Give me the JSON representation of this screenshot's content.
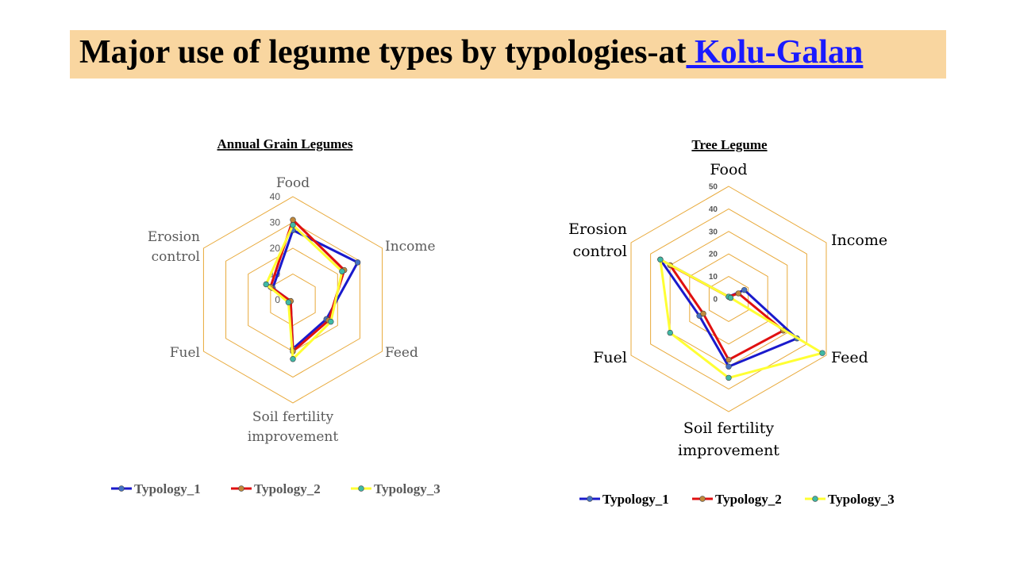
{
  "header": {
    "title_prefix": "Major use of legume types by typologies-at",
    "title_link": " Kolu-Galan",
    "background": "#f9d6a0",
    "link_color": "#1a1aff"
  },
  "chart_data": [
    {
      "type": "radar",
      "title": "Annual Grain Legumes",
      "categories": [
        "Food",
        "Income",
        "Feed",
        "Soil fertility improvement",
        "Fuel",
        "Erosion control"
      ],
      "axis_ticks": [
        "0",
        "10",
        "20",
        "30",
        "40"
      ],
      "rmax": 40,
      "grid_color": "#e8a93a",
      "series": [
        {
          "name": "Typology_1",
          "color": "#1a1acc",
          "marker": "#4472c4",
          "values": [
            27,
            29,
            15,
            19,
            1,
            9
          ]
        },
        {
          "name": "Typology_2",
          "color": "#e01010",
          "marker": "#c0893a",
          "values": [
            31,
            23,
            16,
            20,
            1,
            10
          ]
        },
        {
          "name": "Typology_3",
          "color": "#ffff33",
          "marker": "#3fb9a5",
          "values": [
            29,
            22,
            17,
            23,
            2,
            12
          ]
        }
      ],
      "legend_position": "bottom"
    },
    {
      "type": "radar",
      "title": "Tree Legume",
      "categories": [
        "Food",
        "Income",
        "Feed",
        "Soil fertility improvement",
        "Fuel",
        "Erosion control"
      ],
      "axis_ticks": [
        "0",
        "10",
        "20",
        "30",
        "40",
        "50"
      ],
      "rmax": 50,
      "grid_color": "#e8a93a",
      "series": [
        {
          "name": "Typology_1",
          "color": "#1a1acc",
          "marker": "#4472c4",
          "values": [
            1,
            8,
            35,
            30,
            15,
            35
          ]
        },
        {
          "name": "Typology_2",
          "color": "#e01010",
          "marker": "#c0893a",
          "values": [
            1,
            5,
            28,
            27,
            13,
            30
          ]
        },
        {
          "name": "Typology_3",
          "color": "#ffff33",
          "marker": "#3fb9a5",
          "values": [
            1,
            1,
            48,
            35,
            30,
            35
          ]
        }
      ],
      "legend_position": "bottom"
    }
  ]
}
